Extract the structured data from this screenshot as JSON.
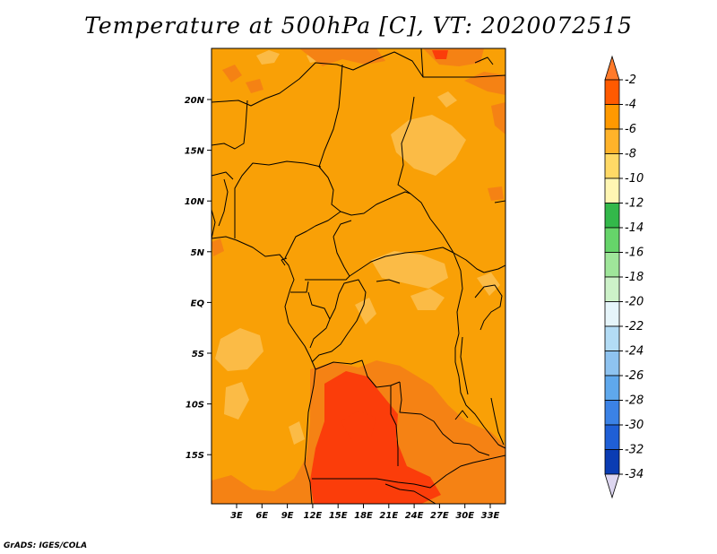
{
  "title": "Temperature at 500hPa [C], VT: 2020072515",
  "credit": "GrADS: IGES/COLA",
  "map": {
    "lon_labels": [
      "3E",
      "6E",
      "9E",
      "12E",
      "15E",
      "18E",
      "21E",
      "24E",
      "27E",
      "30E",
      "33E"
    ],
    "lat_labels": [
      "20N",
      "15N",
      "10N",
      "5N",
      "EQ",
      "5S",
      "10S",
      "15S"
    ]
  },
  "colorbar": {
    "labels": [
      "-2",
      "-4",
      "-6",
      "-8",
      "-10",
      "-12",
      "-14",
      "-16",
      "-18",
      "-20",
      "-22",
      "-24",
      "-26",
      "-28",
      "-30",
      "-32",
      "-34"
    ],
    "colors": [
      "#ff7a2a",
      "#ff5a00",
      "#ff9900",
      "#ffb32a",
      "#ffd966",
      "#fff6b3",
      "#33b84a",
      "#66d46a",
      "#9fe69a",
      "#cdf2c9",
      "#e6f5fa",
      "#b3dcf5",
      "#8ec3f0",
      "#5fa8ec",
      "#3b82e6",
      "#1f5fd6",
      "#0a3cb3",
      "#051a80",
      "#ddd6f0"
    ]
  },
  "colors": {
    "field_base": "#f9a006",
    "warm_minus4": "#f58214",
    "warm_minus2": "#fb3d0a",
    "cool_minus6": "#fbbb46"
  }
}
